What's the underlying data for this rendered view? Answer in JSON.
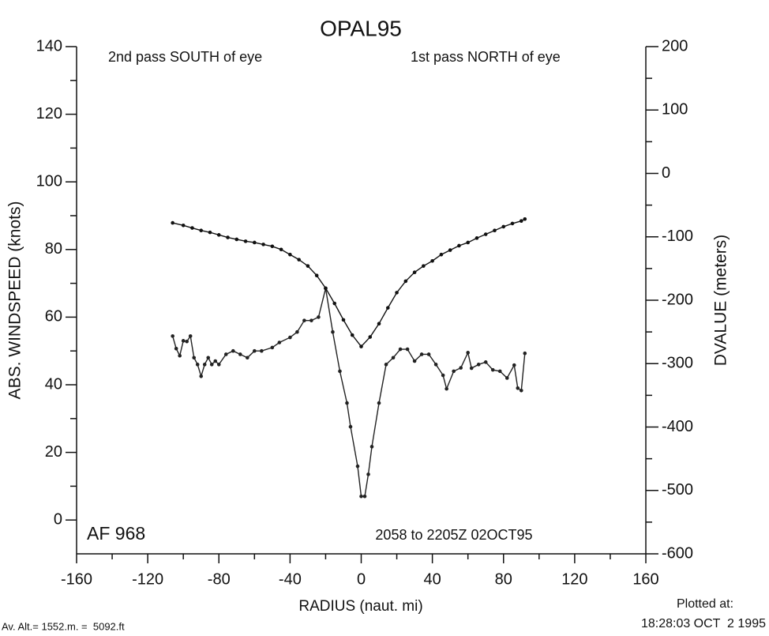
{
  "chart_data": {
    "type": "line",
    "title": "OPAL95",
    "x_label": "RADIUS (naut. mi)",
    "y_label": "ABS. WINDSPEED (knots)",
    "y2_label": "DVALUE (meters)",
    "annotations": [
      "2nd pass SOUTH of eye",
      "1st pass NORTH of eye",
      "AF 968",
      "2058 to 2205Z 02OCT95"
    ],
    "footer_left": "Av. Alt.= 1552.m. =  5092.ft",
    "footer_right": [
      "Plotted at:",
      "18:28:03 OCT  2 1995"
    ],
    "xlim": [
      -160,
      160
    ],
    "xticks": [
      -160,
      -120,
      -80,
      -40,
      0,
      40,
      80,
      120,
      160
    ],
    "xminorticks": [
      -140,
      -100,
      -60,
      -20,
      20,
      60,
      100,
      140
    ],
    "ylim": [
      -10,
      140
    ],
    "yticks": [
      0,
      20,
      40,
      60,
      80,
      100,
      120,
      140
    ],
    "yminorticks": [
      10,
      30,
      50,
      70,
      90,
      110,
      130
    ],
    "y2lim": [
      -600,
      200
    ],
    "y2ticks": [
      -600,
      -500,
      -400,
      -300,
      -200,
      -100,
      0,
      100,
      200
    ],
    "y2minorticks": [
      -550,
      -450,
      -350,
      -250,
      -150,
      -50,
      50,
      150
    ],
    "grid": false,
    "series": [
      {
        "name": "ABS. WINDSPEED",
        "color": "#222222",
        "x": [
          -106,
          -104,
          -102,
          -100,
          -98,
          -96,
          -94,
          -92,
          -90,
          -88,
          -86,
          -84,
          -82,
          -80,
          -76,
          -72,
          -68,
          -64,
          -60,
          -56,
          -50,
          -46,
          -40,
          -36,
          -32,
          -28,
          -24,
          -20,
          -16,
          -12,
          -8,
          -6,
          -2,
          0,
          2,
          4,
          6,
          10,
          14,
          18,
          22,
          26,
          30,
          34,
          38,
          42,
          46,
          48,
          52,
          56,
          60,
          62,
          66,
          70,
          74,
          78,
          82,
          86,
          88,
          90,
          92
        ],
        "values": [
          54.4,
          50.7,
          48.6,
          53,
          52.8,
          54.4,
          48,
          46,
          42.5,
          46,
          48,
          46,
          47,
          46,
          49,
          50,
          49,
          48,
          50,
          50,
          51,
          52.5,
          54,
          55.6,
          59,
          59,
          60,
          68.5,
          55.6,
          44,
          34.6,
          27.6,
          15.9,
          7,
          7,
          13.5,
          21.7,
          34.6,
          46,
          48,
          50.5,
          50.5,
          47,
          49,
          49,
          46,
          42.8,
          38.8,
          44,
          45,
          49.5,
          44.9,
          46,
          46.7,
          44.4,
          44,
          42,
          45.8,
          39,
          38.3,
          49.3
        ]
      },
      {
        "name": "DVALUE",
        "color": "#111111",
        "axis": "y2",
        "x": [
          -106,
          -100,
          -95,
          -90,
          -85,
          -80,
          -75,
          -70,
          -65,
          -60,
          -55,
          -50,
          -45,
          -40,
          -35,
          -30,
          -25,
          -20,
          -15,
          -10,
          -5,
          0,
          5,
          10,
          15,
          20,
          25,
          30,
          35,
          40,
          45,
          50,
          55,
          60,
          65,
          70,
          75,
          80,
          85,
          90,
          92
        ],
        "values": [
          -78,
          -82,
          -86,
          -90,
          -93,
          -97,
          -101,
          -104,
          -107,
          -109,
          -112,
          -115,
          -120,
          -128,
          -136,
          -146,
          -161,
          -181,
          -205,
          -231,
          -255,
          -273,
          -258,
          -237,
          -212,
          -188,
          -170,
          -156,
          -146,
          -138,
          -128,
          -121,
          -114,
          -109,
          -102,
          -96,
          -90,
          -84,
          -79,
          -75,
          -72
        ]
      }
    ]
  }
}
